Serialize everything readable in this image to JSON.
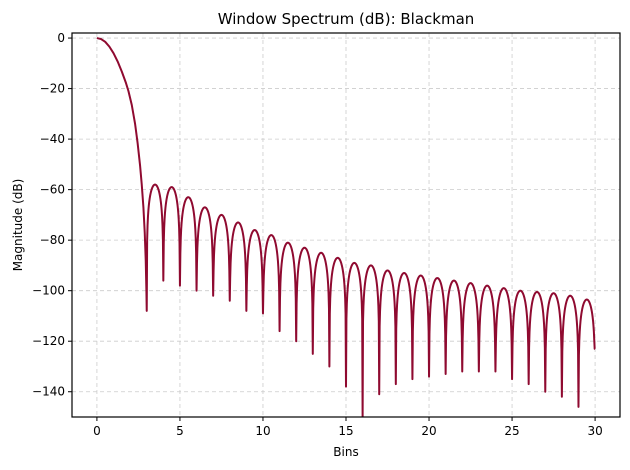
{
  "chart_data": {
    "type": "line",
    "title": "Window Spectrum (dB): Blackman",
    "xlabel": "Bins",
    "ylabel": "Magnitude (dB)",
    "xlim": [
      -1.5,
      31.5
    ],
    "ylim": [
      -150,
      2
    ],
    "xticks": [
      0,
      5,
      10,
      15,
      20,
      25,
      30
    ],
    "yticks": [
      0,
      -20,
      -40,
      -60,
      -80,
      -100,
      -120,
      -140
    ],
    "grid": true,
    "legend": null,
    "line_color": "#8f0a30",
    "series": [
      {
        "name": "Blackman",
        "main_lobe": [
          [
            0,
            0
          ],
          [
            0.25,
            -0.4
          ],
          [
            0.5,
            -1.5
          ],
          [
            0.75,
            -3.4
          ],
          [
            1.0,
            -6.0
          ],
          [
            1.25,
            -9.3
          ],
          [
            1.5,
            -13.3
          ],
          [
            1.75,
            -17.8
          ],
          [
            1.9,
            -21
          ],
          [
            2.1,
            -26.5
          ],
          [
            2.3,
            -34
          ],
          [
            2.45,
            -41.5
          ],
          [
            2.6,
            -50.5
          ],
          [
            2.7,
            -58
          ],
          [
            2.8,
            -67
          ],
          [
            2.88,
            -77
          ],
          [
            2.94,
            -88
          ],
          [
            2.98,
            -100
          ],
          [
            3.0,
            -108
          ]
        ],
        "nulls": [
          [
            3,
            -108
          ],
          [
            4,
            -96
          ],
          [
            5,
            -98
          ],
          [
            6,
            -100
          ],
          [
            7,
            -102
          ],
          [
            8,
            -104
          ],
          [
            9,
            -108
          ],
          [
            10,
            -109
          ],
          [
            11,
            -116
          ],
          [
            12,
            -120
          ],
          [
            13,
            -125
          ],
          [
            14,
            -130
          ],
          [
            15,
            -138
          ],
          [
            16,
            -150
          ],
          [
            17,
            -141
          ],
          [
            18,
            -137
          ],
          [
            19,
            -135
          ],
          [
            20,
            -134
          ],
          [
            21,
            -133
          ],
          [
            22,
            -132
          ],
          [
            23,
            -132
          ],
          [
            24,
            -132
          ],
          [
            25,
            -135
          ],
          [
            26,
            -137
          ],
          [
            27,
            -140
          ],
          [
            28,
            -142
          ],
          [
            29,
            -146
          ]
        ],
        "peaks": [
          [
            3.5,
            -58
          ],
          [
            4.5,
            -59
          ],
          [
            5.5,
            -63
          ],
          [
            6.5,
            -67
          ],
          [
            7.5,
            -70
          ],
          [
            8.5,
            -73
          ],
          [
            9.5,
            -76
          ],
          [
            10.5,
            -78
          ],
          [
            11.5,
            -81
          ],
          [
            12.5,
            -83
          ],
          [
            13.5,
            -85
          ],
          [
            14.5,
            -87
          ],
          [
            15.5,
            -89
          ],
          [
            16.5,
            -90
          ],
          [
            17.5,
            -92
          ],
          [
            18.5,
            -93
          ],
          [
            19.5,
            -94
          ],
          [
            20.5,
            -95
          ],
          [
            21.5,
            -96
          ],
          [
            22.5,
            -97
          ],
          [
            23.5,
            -98
          ],
          [
            24.5,
            -99
          ],
          [
            25.5,
            -100
          ],
          [
            26.5,
            -100.5
          ],
          [
            27.5,
            -101
          ],
          [
            28.5,
            -102
          ],
          [
            29.5,
            -103.5
          ]
        ],
        "end_point": [
          30,
          -123
        ]
      }
    ]
  }
}
